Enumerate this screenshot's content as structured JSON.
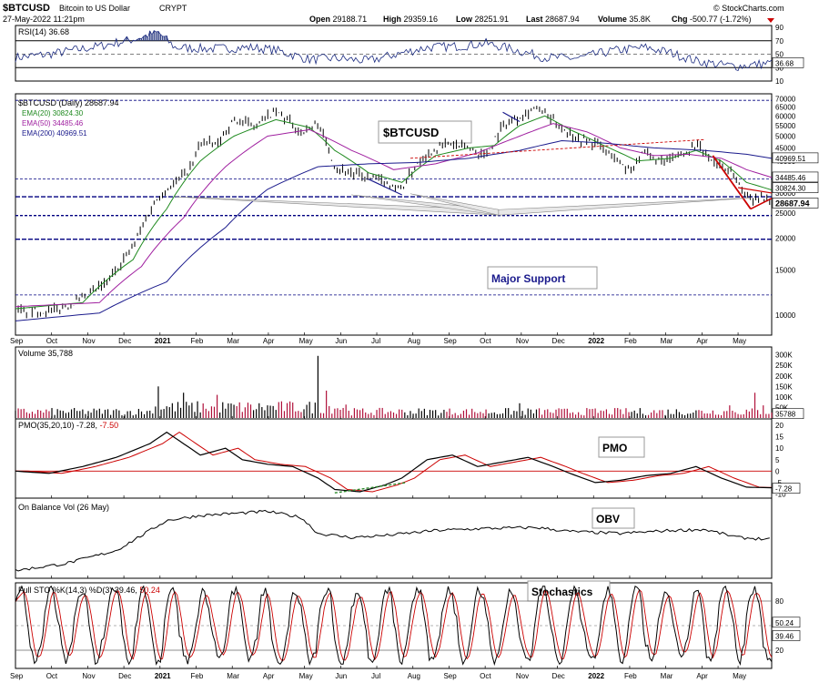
{
  "header": {
    "symbol": "$BTCUSD",
    "name": "Bitcoin to US Dollar",
    "exchange": "CRYPT",
    "date": "27-May-2022 11:21pm",
    "brand": "© StockCharts.com",
    "open_label": "Open",
    "open": "29188.71",
    "high_label": "High",
    "high": "29359.16",
    "low_label": "Low",
    "low": "28251.91",
    "last_label": "Last",
    "last": "28687.94",
    "volume_label": "Volume",
    "volume": "35.8K",
    "chg_label": "Chg",
    "chg": "-500.77 (-1.72%)"
  },
  "colors": {
    "price_bars": "#000000",
    "ema20": "#1f8a1f",
    "ema50": "#a020a0",
    "ema200": "#1a1a8c",
    "support": "#000080",
    "volume_up": "#000000",
    "volume_down": "#b0103a",
    "pmo": "#000000",
    "pmo_signal": "#cc0000",
    "rsi_fill": "#3c4b8c",
    "down_trend": "#cc0000"
  },
  "chart_data": [
    {
      "type": "line",
      "panel": "rsi",
      "title": "RSI(14) 36.68",
      "current_label": "36.68",
      "ylim": [
        10,
        90
      ],
      "y_ticks": [
        "90",
        "70",
        "50",
        "30",
        "10"
      ],
      "reference_lines": [
        70,
        50,
        30
      ],
      "anchors": [
        {
          "t": 0,
          "v": 45
        },
        {
          "t": 4,
          "v": 50
        },
        {
          "t": 10,
          "v": 62
        },
        {
          "t": 14,
          "v": 72
        },
        {
          "t": 17,
          "v": 82
        },
        {
          "t": 19,
          "v": 60
        },
        {
          "t": 23,
          "v": 58
        },
        {
          "t": 28,
          "v": 60
        },
        {
          "t": 31,
          "v": 56
        },
        {
          "t": 35,
          "v": 42
        },
        {
          "t": 38,
          "v": 44
        },
        {
          "t": 42,
          "v": 40
        },
        {
          "t": 46,
          "v": 52
        },
        {
          "t": 49,
          "v": 60
        },
        {
          "t": 53,
          "v": 62
        },
        {
          "t": 56,
          "v": 66
        },
        {
          "t": 59,
          "v": 58
        },
        {
          "t": 63,
          "v": 45
        },
        {
          "t": 67,
          "v": 44
        },
        {
          "t": 71,
          "v": 55
        },
        {
          "t": 75,
          "v": 60
        },
        {
          "t": 78,
          "v": 52
        },
        {
          "t": 81,
          "v": 40
        },
        {
          "t": 84,
          "v": 34
        },
        {
          "t": 86,
          "v": 32
        },
        {
          "t": 90,
          "v": 37
        }
      ]
    },
    {
      "type": "line",
      "panel": "price",
      "title": "$BTCUSD (Daily) 28687.94",
      "scale": "log",
      "ylim": [
        8500,
        72000
      ],
      "y_ticks": [
        "70000",
        "65000",
        "60000",
        "55000",
        "50000",
        "45000",
        "40000",
        "35000",
        "30000",
        "25000",
        "20000",
        "15000",
        "10000"
      ],
      "x_ticks": [
        "Sep",
        "Oct",
        "Nov",
        "Dec",
        "2021",
        "Feb",
        "Mar",
        "Apr",
        "May",
        "Jun",
        "Jul",
        "Aug",
        "Sep",
        "Oct",
        "Nov",
        "Dec",
        "2022",
        "Feb",
        "Mar",
        "Apr",
        "May"
      ],
      "legend": [
        {
          "label": "EMA(20) 30824.30",
          "color": "#1f8a1f"
        },
        {
          "label": "EMA(50) 34485.46",
          "color": "#a020a0"
        },
        {
          "label": "EMA(200) 40969.51",
          "color": "#1a1a8c"
        }
      ],
      "series": [
        {
          "name": "$BTCUSD",
          "anchors": [
            {
              "t": 0,
              "v": 10500
            },
            {
              "t": 4,
              "v": 10300
            },
            {
              "t": 8,
              "v": 11500
            },
            {
              "t": 11,
              "v": 13500
            },
            {
              "t": 14,
              "v": 18500
            },
            {
              "t": 17,
              "v": 29000
            },
            {
              "t": 19,
              "v": 33000
            },
            {
              "t": 21,
              "v": 38000
            },
            {
              "t": 22,
              "v": 48000
            },
            {
              "t": 24,
              "v": 46000
            },
            {
              "t": 26,
              "v": 58000
            },
            {
              "t": 28,
              "v": 55000
            },
            {
              "t": 31,
              "v": 62000
            },
            {
              "t": 34,
              "v": 52000
            },
            {
              "t": 36,
              "v": 56000
            },
            {
              "t": 38,
              "v": 38000
            },
            {
              "t": 41,
              "v": 35000
            },
            {
              "t": 44,
              "v": 33000
            },
            {
              "t": 46,
              "v": 31000
            },
            {
              "t": 48,
              "v": 40000
            },
            {
              "t": 51,
              "v": 47000
            },
            {
              "t": 54,
              "v": 45000
            },
            {
              "t": 56,
              "v": 42000
            },
            {
              "t": 58,
              "v": 55000
            },
            {
              "t": 60,
              "v": 60000
            },
            {
              "t": 62,
              "v": 65000
            },
            {
              "t": 64,
              "v": 57000
            },
            {
              "t": 67,
              "v": 49000
            },
            {
              "t": 69,
              "v": 47000
            },
            {
              "t": 71,
              "v": 42000
            },
            {
              "t": 73,
              "v": 37000
            },
            {
              "t": 75,
              "v": 43000
            },
            {
              "t": 77,
              "v": 39000
            },
            {
              "t": 79,
              "v": 42000
            },
            {
              "t": 81,
              "v": 46000
            },
            {
              "t": 83,
              "v": 40000
            },
            {
              "t": 85,
              "v": 37000
            },
            {
              "t": 87,
              "v": 29000
            },
            {
              "t": 90,
              "v": 28688
            }
          ]
        },
        {
          "name": "EMA(20)",
          "anchors": [
            {
              "t": 0,
              "v": 10600
            },
            {
              "t": 8,
              "v": 11200
            },
            {
              "t": 14,
              "v": 16500
            },
            {
              "t": 18,
              "v": 26000
            },
            {
              "t": 22,
              "v": 40000
            },
            {
              "t": 26,
              "v": 50000
            },
            {
              "t": 31,
              "v": 58000
            },
            {
              "t": 35,
              "v": 54000
            },
            {
              "t": 38,
              "v": 44000
            },
            {
              "t": 42,
              "v": 36000
            },
            {
              "t": 46,
              "v": 33000
            },
            {
              "t": 50,
              "v": 42000
            },
            {
              "t": 54,
              "v": 45000
            },
            {
              "t": 57,
              "v": 46000
            },
            {
              "t": 60,
              "v": 55000
            },
            {
              "t": 63,
              "v": 60000
            },
            {
              "t": 66,
              "v": 53000
            },
            {
              "t": 70,
              "v": 46000
            },
            {
              "t": 74,
              "v": 40000
            },
            {
              "t": 78,
              "v": 41000
            },
            {
              "t": 81,
              "v": 44000
            },
            {
              "t": 84,
              "v": 40000
            },
            {
              "t": 87,
              "v": 33000
            },
            {
              "t": 90,
              "v": 30824
            }
          ]
        },
        {
          "name": "EMA(50)",
          "anchors": [
            {
              "t": 0,
              "v": 10800
            },
            {
              "t": 10,
              "v": 11200
            },
            {
              "t": 15,
              "v": 15500
            },
            {
              "t": 20,
              "v": 24000
            },
            {
              "t": 25,
              "v": 38000
            },
            {
              "t": 30,
              "v": 50000
            },
            {
              "t": 35,
              "v": 53000
            },
            {
              "t": 40,
              "v": 44000
            },
            {
              "t": 45,
              "v": 37000
            },
            {
              "t": 50,
              "v": 39000
            },
            {
              "t": 55,
              "v": 43000
            },
            {
              "t": 60,
              "v": 50000
            },
            {
              "t": 64,
              "v": 56000
            },
            {
              "t": 68,
              "v": 52000
            },
            {
              "t": 72,
              "v": 45000
            },
            {
              "t": 76,
              "v": 42000
            },
            {
              "t": 80,
              "v": 42500
            },
            {
              "t": 84,
              "v": 41000
            },
            {
              "t": 87,
              "v": 37000
            },
            {
              "t": 90,
              "v": 34485
            }
          ]
        },
        {
          "name": "EMA(200)",
          "anchors": [
            {
              "t": 0,
              "v": 9500
            },
            {
              "t": 10,
              "v": 10200
            },
            {
              "t": 18,
              "v": 13500
            },
            {
              "t": 25,
              "v": 22000
            },
            {
              "t": 30,
              "v": 31000
            },
            {
              "t": 36,
              "v": 38000
            },
            {
              "t": 42,
              "v": 39000
            },
            {
              "t": 48,
              "v": 39500
            },
            {
              "t": 54,
              "v": 41000
            },
            {
              "t": 60,
              "v": 44000
            },
            {
              "t": 65,
              "v": 48000
            },
            {
              "t": 70,
              "v": 47000
            },
            {
              "t": 76,
              "v": 45000
            },
            {
              "t": 82,
              "v": 44000
            },
            {
              "t": 87,
              "v": 42500
            },
            {
              "t": 90,
              "v": 40970
            }
          ]
        }
      ],
      "price_labels": [
        "40969.51",
        "34485.46",
        "30824.30",
        "28687.94"
      ],
      "support_levels": [
        29000,
        24500,
        19800
      ],
      "dashed_levels": [
        69000,
        34000,
        12000
      ],
      "annotations": [
        "$BTCUSD",
        "Major Support"
      ]
    },
    {
      "type": "bar",
      "panel": "volume",
      "title": "Volume 35,788",
      "current_label": "35788",
      "y_ticks": [
        "300K",
        "250K",
        "200K",
        "150K",
        "100K",
        "50K"
      ],
      "ylim": [
        0,
        320000
      ],
      "spikes": [
        {
          "t": 17,
          "v": 150000
        },
        {
          "t": 20,
          "v": 120000
        },
        {
          "t": 24,
          "v": 110000
        },
        {
          "t": 36,
          "v": 295000
        },
        {
          "t": 37,
          "v": 130000
        },
        {
          "t": 60,
          "v": 70000
        },
        {
          "t": 85,
          "v": 60000
        },
        {
          "t": 88,
          "v": 120000
        },
        {
          "t": 89,
          "v": 60000
        }
      ],
      "base_level": 30000
    },
    {
      "type": "line",
      "panel": "pmo",
      "title": "PMO(35,20,10) -7.28, -7.50",
      "title_pmo": "PMO(35,20,10) -7.28,",
      "title_signal": "-7.50",
      "current_label": "-7.28",
      "ylim": [
        -11,
        22
      ],
      "y_ticks": [
        "20",
        "15",
        "10",
        "5",
        "0",
        "-5",
        "-10"
      ],
      "annotation": "PMO",
      "anchors": [
        {
          "t": 0,
          "v": 0
        },
        {
          "t": 4,
          "v": -1
        },
        {
          "t": 8,
          "v": 2
        },
        {
          "t": 12,
          "v": 6
        },
        {
          "t": 16,
          "v": 12
        },
        {
          "t": 18,
          "v": 17
        },
        {
          "t": 20,
          "v": 12
        },
        {
          "t": 22,
          "v": 7
        },
        {
          "t": 25,
          "v": 10
        },
        {
          "t": 27,
          "v": 5
        },
        {
          "t": 30,
          "v": 3
        },
        {
          "t": 33,
          "v": 2
        },
        {
          "t": 36,
          "v": -3
        },
        {
          "t": 38,
          "v": -8
        },
        {
          "t": 41,
          "v": -9
        },
        {
          "t": 44,
          "v": -6
        },
        {
          "t": 46,
          "v": -3
        },
        {
          "t": 49,
          "v": 5
        },
        {
          "t": 52,
          "v": 7
        },
        {
          "t": 55,
          "v": 2
        },
        {
          "t": 58,
          "v": 4
        },
        {
          "t": 61,
          "v": 6
        },
        {
          "t": 64,
          "v": 2
        },
        {
          "t": 66,
          "v": -1
        },
        {
          "t": 69,
          "v": -5
        },
        {
          "t": 72,
          "v": -4
        },
        {
          "t": 75,
          "v": -2
        },
        {
          "t": 78,
          "v": -1
        },
        {
          "t": 81,
          "v": 2
        },
        {
          "t": 84,
          "v": -3
        },
        {
          "t": 87,
          "v": -7
        },
        {
          "t": 90,
          "v": -7.28
        }
      ]
    },
    {
      "type": "line",
      "panel": "obv",
      "title": "On Balance Vol (26 May)",
      "annotation": "OBV",
      "anchors": [
        {
          "t": 0,
          "v": 5
        },
        {
          "t": 6,
          "v": 12
        },
        {
          "t": 12,
          "v": 25
        },
        {
          "t": 18,
          "v": 55
        },
        {
          "t": 22,
          "v": 60
        },
        {
          "t": 26,
          "v": 62
        },
        {
          "t": 30,
          "v": 64
        },
        {
          "t": 34,
          "v": 58
        },
        {
          "t": 36,
          "v": 42
        },
        {
          "t": 40,
          "v": 38
        },
        {
          "t": 44,
          "v": 40
        },
        {
          "t": 50,
          "v": 45
        },
        {
          "t": 56,
          "v": 47
        },
        {
          "t": 62,
          "v": 48
        },
        {
          "t": 66,
          "v": 44
        },
        {
          "t": 72,
          "v": 42
        },
        {
          "t": 78,
          "v": 45
        },
        {
          "t": 82,
          "v": 46
        },
        {
          "t": 86,
          "v": 38
        },
        {
          "t": 90,
          "v": 36
        }
      ]
    },
    {
      "type": "line",
      "panel": "stochastics",
      "title": "Full STO %K(14,3) %D(3) 39.46, 50.24",
      "title_k": "Full STO %K(14,3) %D(3) 39.46,",
      "title_d": "50.24",
      "labels": [
        "50.24",
        "39.46"
      ],
      "ylim": [
        0,
        100
      ],
      "y_ticks": [
        "80",
        "20"
      ],
      "reference_lines": [
        80,
        50,
        20
      ],
      "annotation": "Stochastics"
    }
  ]
}
